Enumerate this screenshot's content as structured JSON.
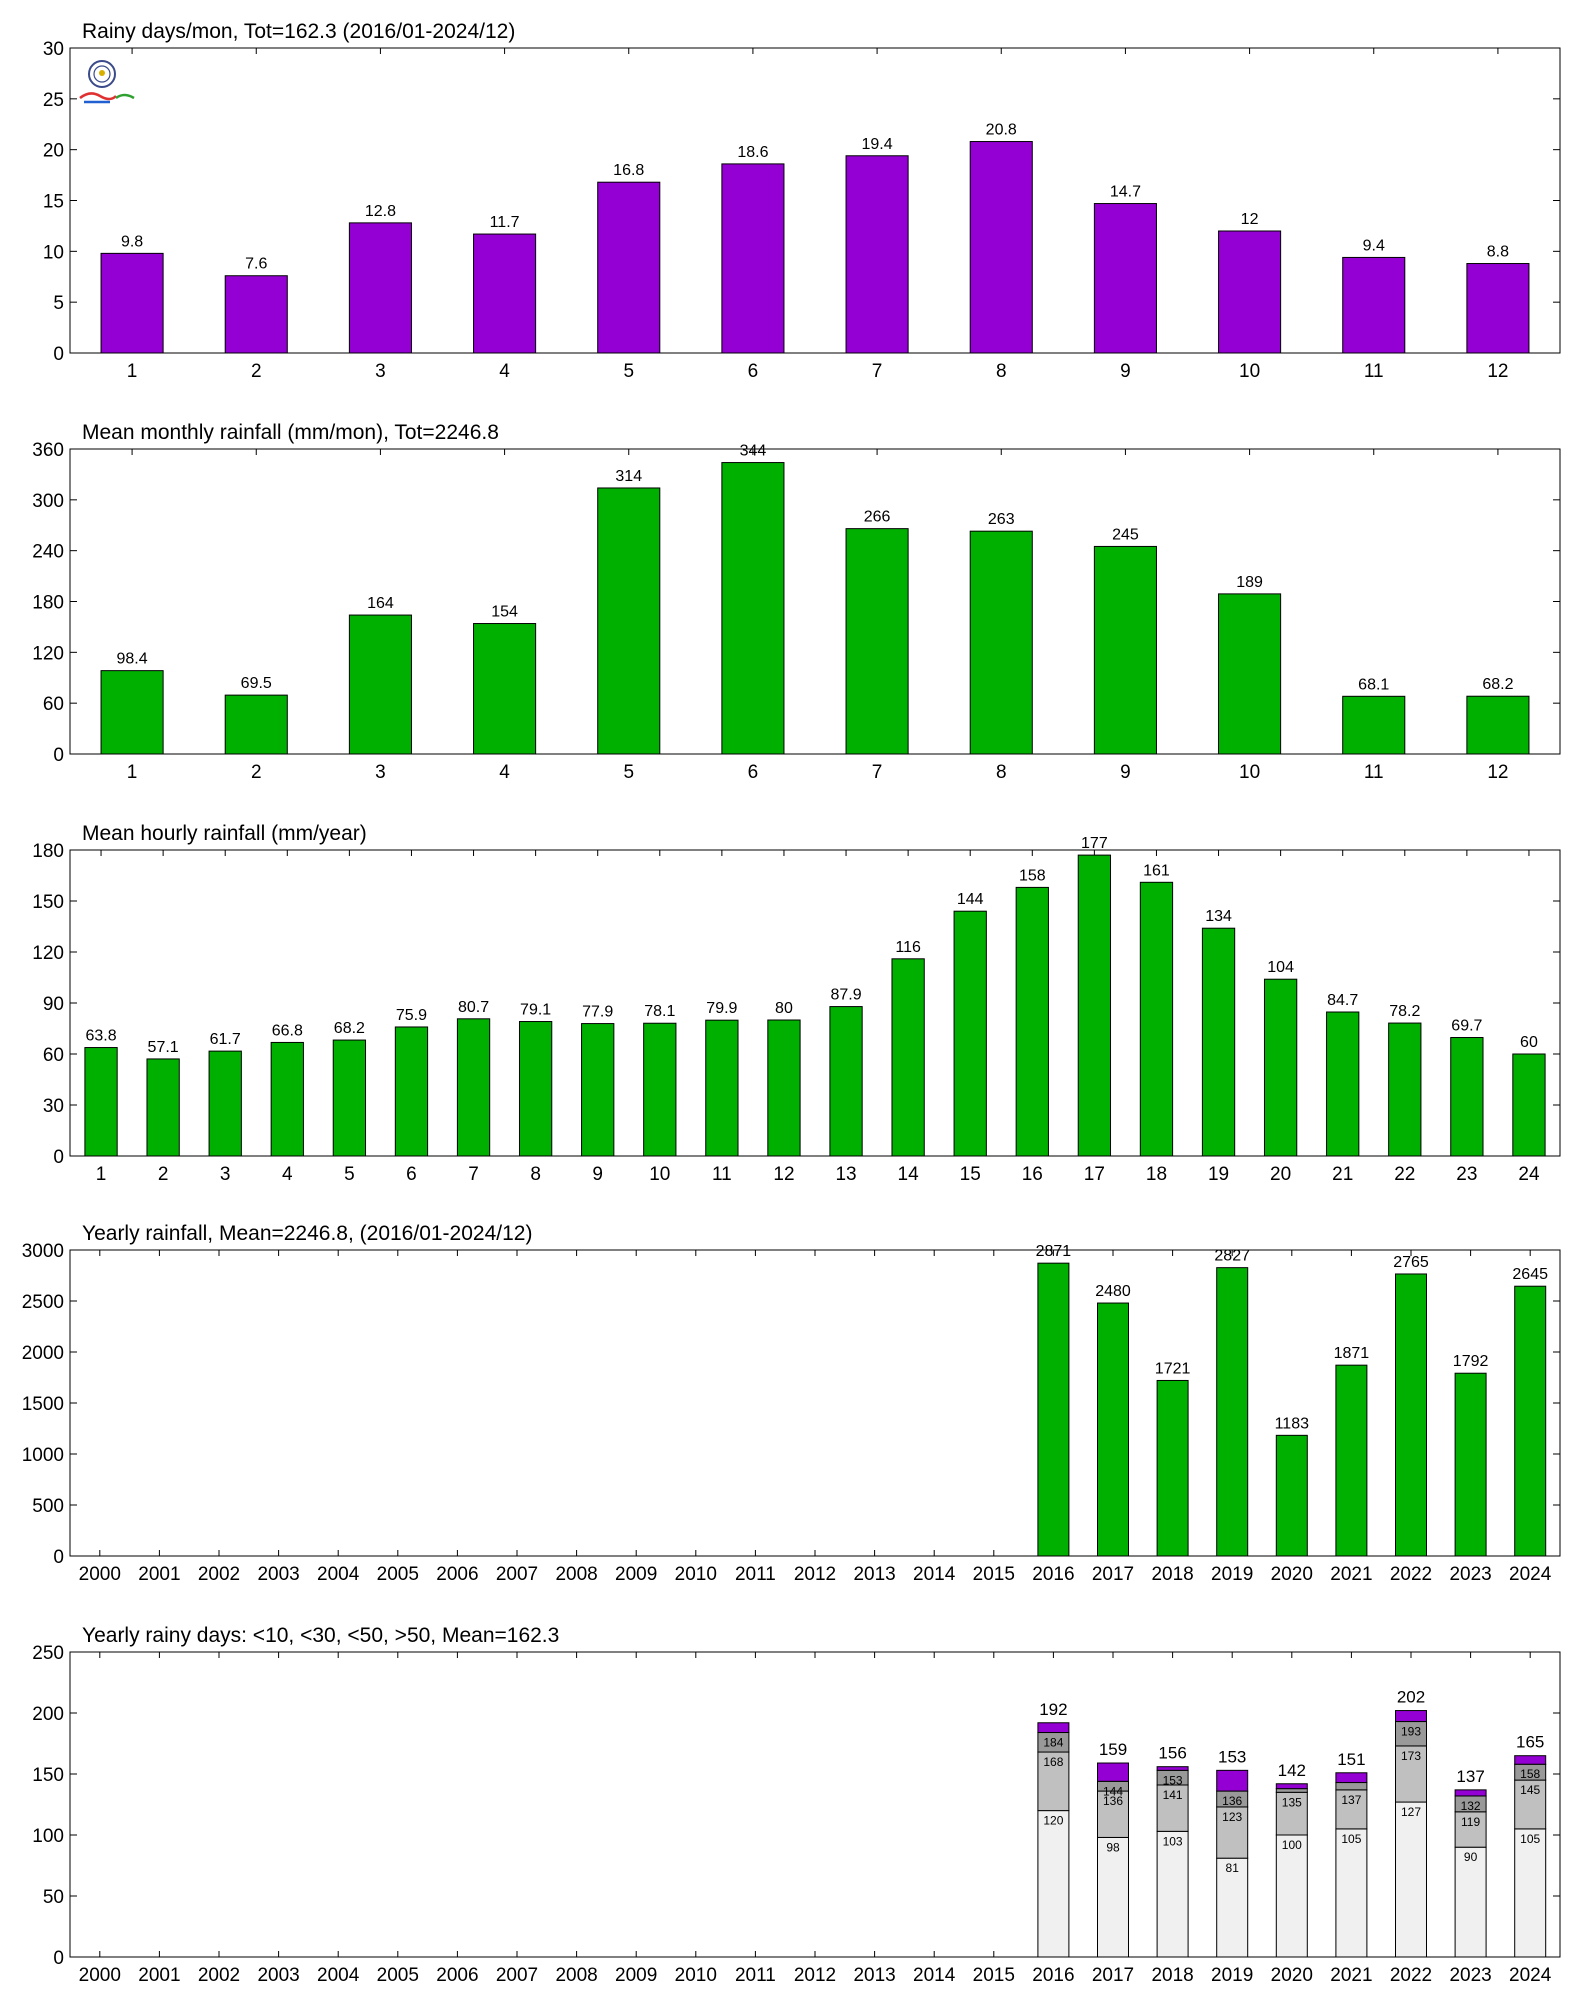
{
  "colors": {
    "purple": "#9400d3",
    "green": "#00b000",
    "cat_lt10": "#f0f0f0",
    "cat_lt30": "#c0c0c0",
    "cat_lt50": "#999999",
    "cat_gt50": "#9400d3"
  },
  "logo": {
    "icon": "station-lab-logo-icon"
  },
  "chart_data": [
    {
      "type": "bar",
      "title": "Rainy days/mon, Tot=162.3 (2016/01-2024/12)",
      "categories": [
        "1",
        "2",
        "3",
        "4",
        "5",
        "6",
        "7",
        "8",
        "9",
        "10",
        "11",
        "12"
      ],
      "values": [
        9.8,
        7.6,
        12.8,
        11.7,
        16.8,
        18.6,
        19.4,
        20.8,
        14.7,
        12,
        9.4,
        8.8
      ],
      "labels": [
        "9.8",
        "7.6",
        "12.8",
        "11.7",
        "16.8",
        "18.6",
        "19.4",
        "20.8",
        "14.7",
        "12",
        "9.4",
        "8.8"
      ],
      "ylim": [
        0,
        30
      ],
      "yticks": [
        0,
        5,
        10,
        15,
        20,
        25,
        30
      ],
      "color": "#9400d3",
      "grid": false
    },
    {
      "type": "bar",
      "title": "Mean monthly rainfall (mm/mon), Tot=2246.8",
      "categories": [
        "1",
        "2",
        "3",
        "4",
        "5",
        "6",
        "7",
        "8",
        "9",
        "10",
        "11",
        "12"
      ],
      "values": [
        98.4,
        69.5,
        164,
        154,
        314,
        344,
        266,
        263,
        245,
        189,
        68.1,
        68.2
      ],
      "labels": [
        "98.4",
        "69.5",
        "164",
        "154",
        "314",
        "344",
        "266",
        "263",
        "245",
        "189",
        "68.1",
        "68.2"
      ],
      "ylim": [
        0,
        360
      ],
      "yticks": [
        0,
        60,
        120,
        180,
        240,
        300,
        360
      ],
      "color": "#00b000",
      "grid": false
    },
    {
      "type": "bar",
      "title": "Mean hourly rainfall (mm/year)",
      "categories": [
        "1",
        "2",
        "3",
        "4",
        "5",
        "6",
        "7",
        "8",
        "9",
        "10",
        "11",
        "12",
        "13",
        "14",
        "15",
        "16",
        "17",
        "18",
        "19",
        "20",
        "21",
        "22",
        "23",
        "24"
      ],
      "values": [
        63.8,
        57.1,
        61.7,
        66.8,
        68.2,
        75.9,
        80.7,
        79.1,
        77.9,
        78.1,
        79.9,
        80,
        87.9,
        116,
        144,
        158,
        177,
        161,
        134,
        104,
        84.7,
        78.2,
        69.7,
        60
      ],
      "labels": [
        "63.8",
        "57.1",
        "61.7",
        "66.8",
        "68.2",
        "75.9",
        "80.7",
        "79.1",
        "77.9",
        "78.1",
        "79.9",
        "80",
        "87.9",
        "116",
        "144",
        "158",
        "177",
        "161",
        "134",
        "104",
        "84.7",
        "78.2",
        "69.7",
        "60"
      ],
      "ylim": [
        0,
        180
      ],
      "yticks": [
        0,
        30,
        60,
        90,
        120,
        150,
        180
      ],
      "color": "#00b000",
      "grid": false
    },
    {
      "type": "bar",
      "title": "Yearly rainfall, Mean=2246.8, (2016/01-2024/12)",
      "categories": [
        "2000",
        "2001",
        "2002",
        "2003",
        "2004",
        "2005",
        "2006",
        "2007",
        "2008",
        "2009",
        "2010",
        "2011",
        "2012",
        "2013",
        "2014",
        "2015",
        "2016",
        "2017",
        "2018",
        "2019",
        "2020",
        "2021",
        "2022",
        "2023",
        "2024"
      ],
      "values": [
        null,
        null,
        null,
        null,
        null,
        null,
        null,
        null,
        null,
        null,
        null,
        null,
        null,
        null,
        null,
        null,
        2871,
        2480,
        1721,
        2827,
        1183,
        1871,
        2765,
        1792,
        2645
      ],
      "labels": [
        "",
        "",
        "",
        "",
        "",
        "",
        "",
        "",
        "",
        "",
        "",
        "",
        "",
        "",
        "",
        "",
        "2871",
        "2480",
        "1721",
        "2827",
        "1183",
        "1871",
        "2765",
        "1792",
        "2645"
      ],
      "ylim": [
        0,
        3000
      ],
      "yticks": [
        0,
        500,
        1000,
        1500,
        2000,
        2500,
        3000
      ],
      "color": "#00b000",
      "grid": false
    },
    {
      "type": "stacked-bar",
      "title": "Yearly rainy days: <10, <30, <50, >50, Mean=162.3",
      "categories": [
        "2000",
        "2001",
        "2002",
        "2003",
        "2004",
        "2005",
        "2006",
        "2007",
        "2008",
        "2009",
        "2010",
        "2011",
        "2012",
        "2013",
        "2014",
        "2015",
        "2016",
        "2017",
        "2018",
        "2019",
        "2020",
        "2021",
        "2022",
        "2023",
        "2024"
      ],
      "cumulative_series": [
        {
          "values": [
            null,
            null,
            null,
            null,
            null,
            null,
            null,
            null,
            null,
            null,
            null,
            null,
            null,
            null,
            null,
            null,
            120,
            98,
            103,
            81,
            100,
            105,
            127,
            90,
            105
          ],
          "labels": [
            "",
            "",
            "",
            "",
            "",
            "",
            "",
            "",
            "",
            "",
            "",
            "",
            "",
            "",
            "",
            "",
            "120",
            "98",
            "103",
            "81",
            "100",
            "105",
            "127",
            "90",
            "105"
          ]
        },
        {
          "values": [
            null,
            null,
            null,
            null,
            null,
            null,
            null,
            null,
            null,
            null,
            null,
            null,
            null,
            null,
            null,
            null,
            168,
            136,
            141,
            123,
            135,
            137,
            173,
            119,
            145
          ],
          "labels": [
            "",
            "",
            "",
            "",
            "",
            "",
            "",
            "",
            "",
            "",
            "",
            "",
            "",
            "",
            "",
            "",
            "168",
            "136",
            "141",
            "123",
            "135",
            "137",
            "173",
            "119",
            "145"
          ]
        },
        {
          "values": [
            null,
            null,
            null,
            null,
            null,
            null,
            null,
            null,
            null,
            null,
            null,
            null,
            null,
            null,
            null,
            null,
            184,
            144,
            153,
            136,
            138,
            143,
            193,
            132,
            158
          ],
          "labels": [
            "",
            "",
            "",
            "",
            "",
            "",
            "",
            "",
            "",
            "",
            "",
            "",
            "",
            "",
            "",
            "",
            "184",
            "144",
            "153",
            "136",
            "",
            "",
            "193",
            "132",
            "158"
          ]
        },
        {
          "values": [
            null,
            null,
            null,
            null,
            null,
            null,
            null,
            null,
            null,
            null,
            null,
            null,
            null,
            null,
            null,
            null,
            192,
            159,
            156,
            153,
            142,
            151,
            202,
            137,
            165
          ],
          "labels": [
            "",
            "",
            "",
            "",
            "",
            "",
            "",
            "",
            "",
            "",
            "",
            "",
            "",
            "",
            "",
            "",
            "192",
            "159",
            "156",
            "153",
            "142",
            "151",
            "202",
            "137",
            "165"
          ]
        }
      ],
      "ylim": [
        0,
        250
      ],
      "yticks": [
        0,
        50,
        100,
        150,
        200,
        250
      ],
      "grid": false
    }
  ]
}
